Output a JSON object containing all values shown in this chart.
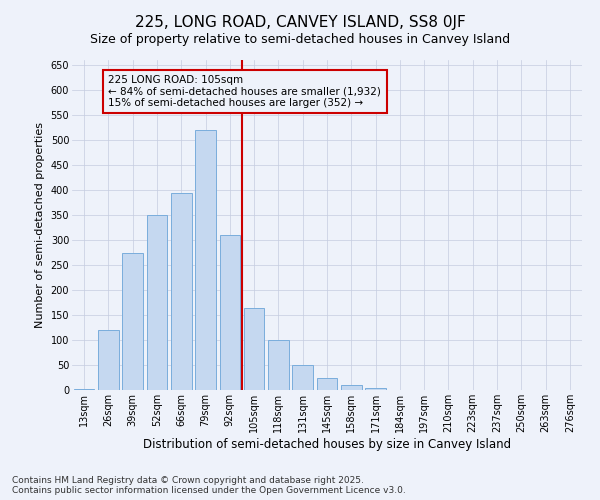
{
  "title": "225, LONG ROAD, CANVEY ISLAND, SS8 0JF",
  "subtitle": "Size of property relative to semi-detached houses in Canvey Island",
  "xlabel": "Distribution of semi-detached houses by size in Canvey Island",
  "ylabel": "Number of semi-detached properties",
  "categories": [
    "13sqm",
    "26sqm",
    "39sqm",
    "52sqm",
    "66sqm",
    "79sqm",
    "92sqm",
    "105sqm",
    "118sqm",
    "131sqm",
    "145sqm",
    "158sqm",
    "171sqm",
    "184sqm",
    "197sqm",
    "210sqm",
    "223sqm",
    "237sqm",
    "250sqm",
    "263sqm",
    "276sqm"
  ],
  "values": [
    2,
    120,
    275,
    350,
    395,
    520,
    310,
    165,
    100,
    50,
    25,
    10,
    5,
    0,
    0,
    0,
    0,
    0,
    0,
    0,
    0
  ],
  "bar_color": "#c5d8f0",
  "bar_edge_color": "#7aaddc",
  "vline_color": "#cc0000",
  "annotation_line1": "225 LONG ROAD: 105sqm",
  "annotation_line2": "← 84% of semi-detached houses are smaller (1,932)",
  "annotation_line3": "15% of semi-detached houses are larger (352) →",
  "annotation_box_color": "#cc0000",
  "ylim": [
    0,
    660
  ],
  "yticks": [
    0,
    50,
    100,
    150,
    200,
    250,
    300,
    350,
    400,
    450,
    500,
    550,
    600,
    650
  ],
  "footer": "Contains HM Land Registry data © Crown copyright and database right 2025.\nContains public sector information licensed under the Open Government Licence v3.0.",
  "background_color": "#eef2fa",
  "title_fontsize": 11,
  "subtitle_fontsize": 9,
  "xlabel_fontsize": 8.5,
  "ylabel_fontsize": 8,
  "tick_fontsize": 7,
  "annotation_fontsize": 7.5,
  "footer_fontsize": 6.5
}
